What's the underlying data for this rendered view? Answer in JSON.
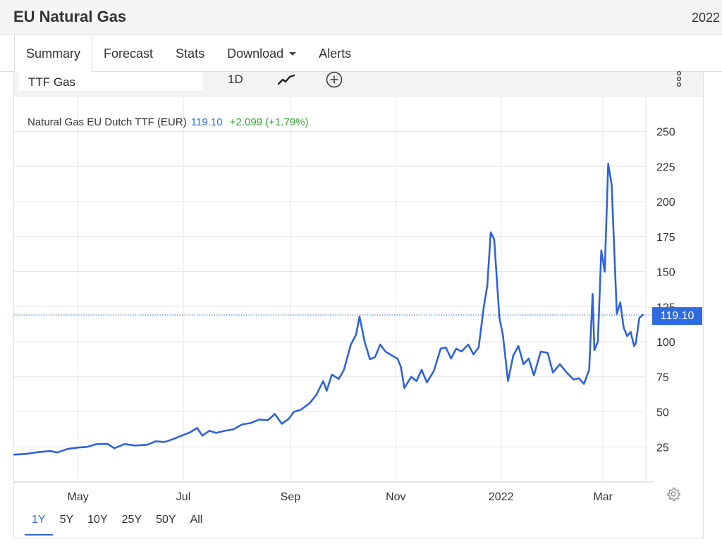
{
  "header": {
    "title": "EU Natural Gas",
    "year": "2022"
  },
  "tabs": [
    {
      "label": "Summary",
      "active": true
    },
    {
      "label": "Forecast",
      "active": false
    },
    {
      "label": "Stats",
      "active": false
    },
    {
      "label": "Download",
      "active": false,
      "dropdown": true
    },
    {
      "label": "Alerts",
      "active": false
    }
  ],
  "toolbar": {
    "symbol_value": "TTF Gas",
    "interval_label": "1D",
    "icons": [
      "line-chart-icon",
      "add-circle-icon",
      "more-vertical-icon"
    ]
  },
  "legend": {
    "name": "Natural Gas EU Dutch TTF (EUR)",
    "price": "119.10",
    "change": "+2.099 (+1.79%)"
  },
  "price_tag": "119.10",
  "ranges": [
    {
      "label": "1Y",
      "active": true
    },
    {
      "label": "5Y",
      "active": false
    },
    {
      "label": "10Y",
      "active": false
    },
    {
      "label": "25Y",
      "active": false
    },
    {
      "label": "50Y",
      "active": false
    },
    {
      "label": "All",
      "active": false
    }
  ],
  "colors": {
    "accent": "#2f6be0",
    "positive": "#2fa82f",
    "line": "#2f62dc"
  },
  "chart_data": {
    "type": "line",
    "title": "",
    "xlabel": "",
    "ylabel": "",
    "x_tick_labels": [
      "May",
      "Jul",
      "Sep",
      "Nov",
      "2022",
      "Mar"
    ],
    "x_tick_dates": [
      "2021-05-01",
      "2021-07-01",
      "2021-09-01",
      "2021-11-01",
      "2022-01-01",
      "2022-03-01"
    ],
    "y_ticks": [
      25,
      50,
      75,
      100,
      125,
      150,
      175,
      200,
      225,
      250
    ],
    "ylim": [
      0,
      262
    ],
    "xlim": [
      "2021-03-25",
      "2022-03-25"
    ],
    "grid": true,
    "last_value": 119.1,
    "series": [
      {
        "name": "Natural Gas EU Dutch TTF (EUR)",
        "points": [
          [
            "2021-03-25",
            19.5
          ],
          [
            "2021-04-01",
            20.0
          ],
          [
            "2021-04-08",
            21.3
          ],
          [
            "2021-04-15",
            22.0
          ],
          [
            "2021-04-19",
            21.0
          ],
          [
            "2021-04-25",
            23.5
          ],
          [
            "2021-05-01",
            24.5
          ],
          [
            "2021-05-06",
            25.0
          ],
          [
            "2021-05-12",
            27.0
          ],
          [
            "2021-05-18",
            27.2
          ],
          [
            "2021-05-22",
            24.0
          ],
          [
            "2021-05-28",
            27.0
          ],
          [
            "2021-06-03",
            26.0
          ],
          [
            "2021-06-10",
            26.5
          ],
          [
            "2021-06-15",
            29.0
          ],
          [
            "2021-06-20",
            28.5
          ],
          [
            "2021-06-25",
            30.5
          ],
          [
            "2021-06-30",
            33.0
          ],
          [
            "2021-07-05",
            35.5
          ],
          [
            "2021-07-09",
            38.5
          ],
          [
            "2021-07-12",
            33.0
          ],
          [
            "2021-07-16",
            36.5
          ],
          [
            "2021-07-20",
            35.0
          ],
          [
            "2021-07-25",
            36.5
          ],
          [
            "2021-07-30",
            37.5
          ],
          [
            "2021-08-04",
            41.0
          ],
          [
            "2021-08-09",
            42.0
          ],
          [
            "2021-08-14",
            44.5
          ],
          [
            "2021-08-19",
            44.0
          ],
          [
            "2021-08-23",
            48.5
          ],
          [
            "2021-08-27",
            41.5
          ],
          [
            "2021-08-31",
            45.0
          ],
          [
            "2021-09-03",
            50.0
          ],
          [
            "2021-09-07",
            51.5
          ],
          [
            "2021-09-12",
            56.0
          ],
          [
            "2021-09-16",
            62.0
          ],
          [
            "2021-09-20",
            72.0
          ],
          [
            "2021-09-22",
            65.0
          ],
          [
            "2021-09-25",
            76.5
          ],
          [
            "2021-09-29",
            73.5
          ],
          [
            "2021-10-02",
            80.0
          ],
          [
            "2021-10-06",
            98.0
          ],
          [
            "2021-10-09",
            105.0
          ],
          [
            "2021-10-11",
            118.0
          ],
          [
            "2021-10-14",
            100.0
          ],
          [
            "2021-10-17",
            87.5
          ],
          [
            "2021-10-20",
            89.0
          ],
          [
            "2021-10-23",
            98.0
          ],
          [
            "2021-10-26",
            93.0
          ],
          [
            "2021-10-30",
            90.0
          ],
          [
            "2021-11-02",
            88.0
          ],
          [
            "2021-11-04",
            82.0
          ],
          [
            "2021-11-06",
            67.0
          ],
          [
            "2021-11-10",
            75.0
          ],
          [
            "2021-11-13",
            72.0
          ],
          [
            "2021-11-16",
            80.0
          ],
          [
            "2021-11-19",
            71.0
          ],
          [
            "2021-11-23",
            79.0
          ],
          [
            "2021-11-27",
            95.0
          ],
          [
            "2021-11-30",
            96.0
          ],
          [
            "2021-12-03",
            88.0
          ],
          [
            "2021-12-06",
            95.0
          ],
          [
            "2021-12-09",
            93.0
          ],
          [
            "2021-12-13",
            98.0
          ],
          [
            "2021-12-16",
            91.0
          ],
          [
            "2021-12-19",
            96.0
          ],
          [
            "2021-12-22",
            125.0
          ],
          [
            "2021-12-24",
            140.0
          ],
          [
            "2021-12-26",
            178.0
          ],
          [
            "2021-12-28",
            173.0
          ],
          [
            "2021-12-31",
            117.0
          ],
          [
            "2022-01-02",
            105.0
          ],
          [
            "2022-01-05",
            72.0
          ],
          [
            "2022-01-08",
            90.0
          ],
          [
            "2022-01-11",
            97.0
          ],
          [
            "2022-01-14",
            84.0
          ],
          [
            "2022-01-17",
            88.0
          ],
          [
            "2022-01-20",
            76.0
          ],
          [
            "2022-01-24",
            93.0
          ],
          [
            "2022-01-28",
            92.0
          ],
          [
            "2022-01-31",
            78.0
          ],
          [
            "2022-02-04",
            84.0
          ],
          [
            "2022-02-08",
            78.0
          ],
          [
            "2022-02-12",
            73.0
          ],
          [
            "2022-02-15",
            74.0
          ],
          [
            "2022-02-18",
            70.0
          ],
          [
            "2022-02-21",
            80.0
          ],
          [
            "2022-02-23",
            134.0
          ],
          [
            "2022-02-24",
            94.0
          ],
          [
            "2022-02-26",
            100.0
          ],
          [
            "2022-02-28",
            165.0
          ],
          [
            "2022-03-02",
            150.0
          ],
          [
            "2022-03-04",
            227.0
          ],
          [
            "2022-03-06",
            212.0
          ],
          [
            "2022-03-09",
            120.0
          ],
          [
            "2022-03-11",
            128.0
          ],
          [
            "2022-03-13",
            110.0
          ],
          [
            "2022-03-15",
            104.0
          ],
          [
            "2022-03-17",
            107.0
          ],
          [
            "2022-03-19",
            97.0
          ],
          [
            "2022-03-20",
            99.0
          ],
          [
            "2022-03-22",
            117.0
          ],
          [
            "2022-03-24",
            119.1
          ]
        ]
      }
    ]
  }
}
